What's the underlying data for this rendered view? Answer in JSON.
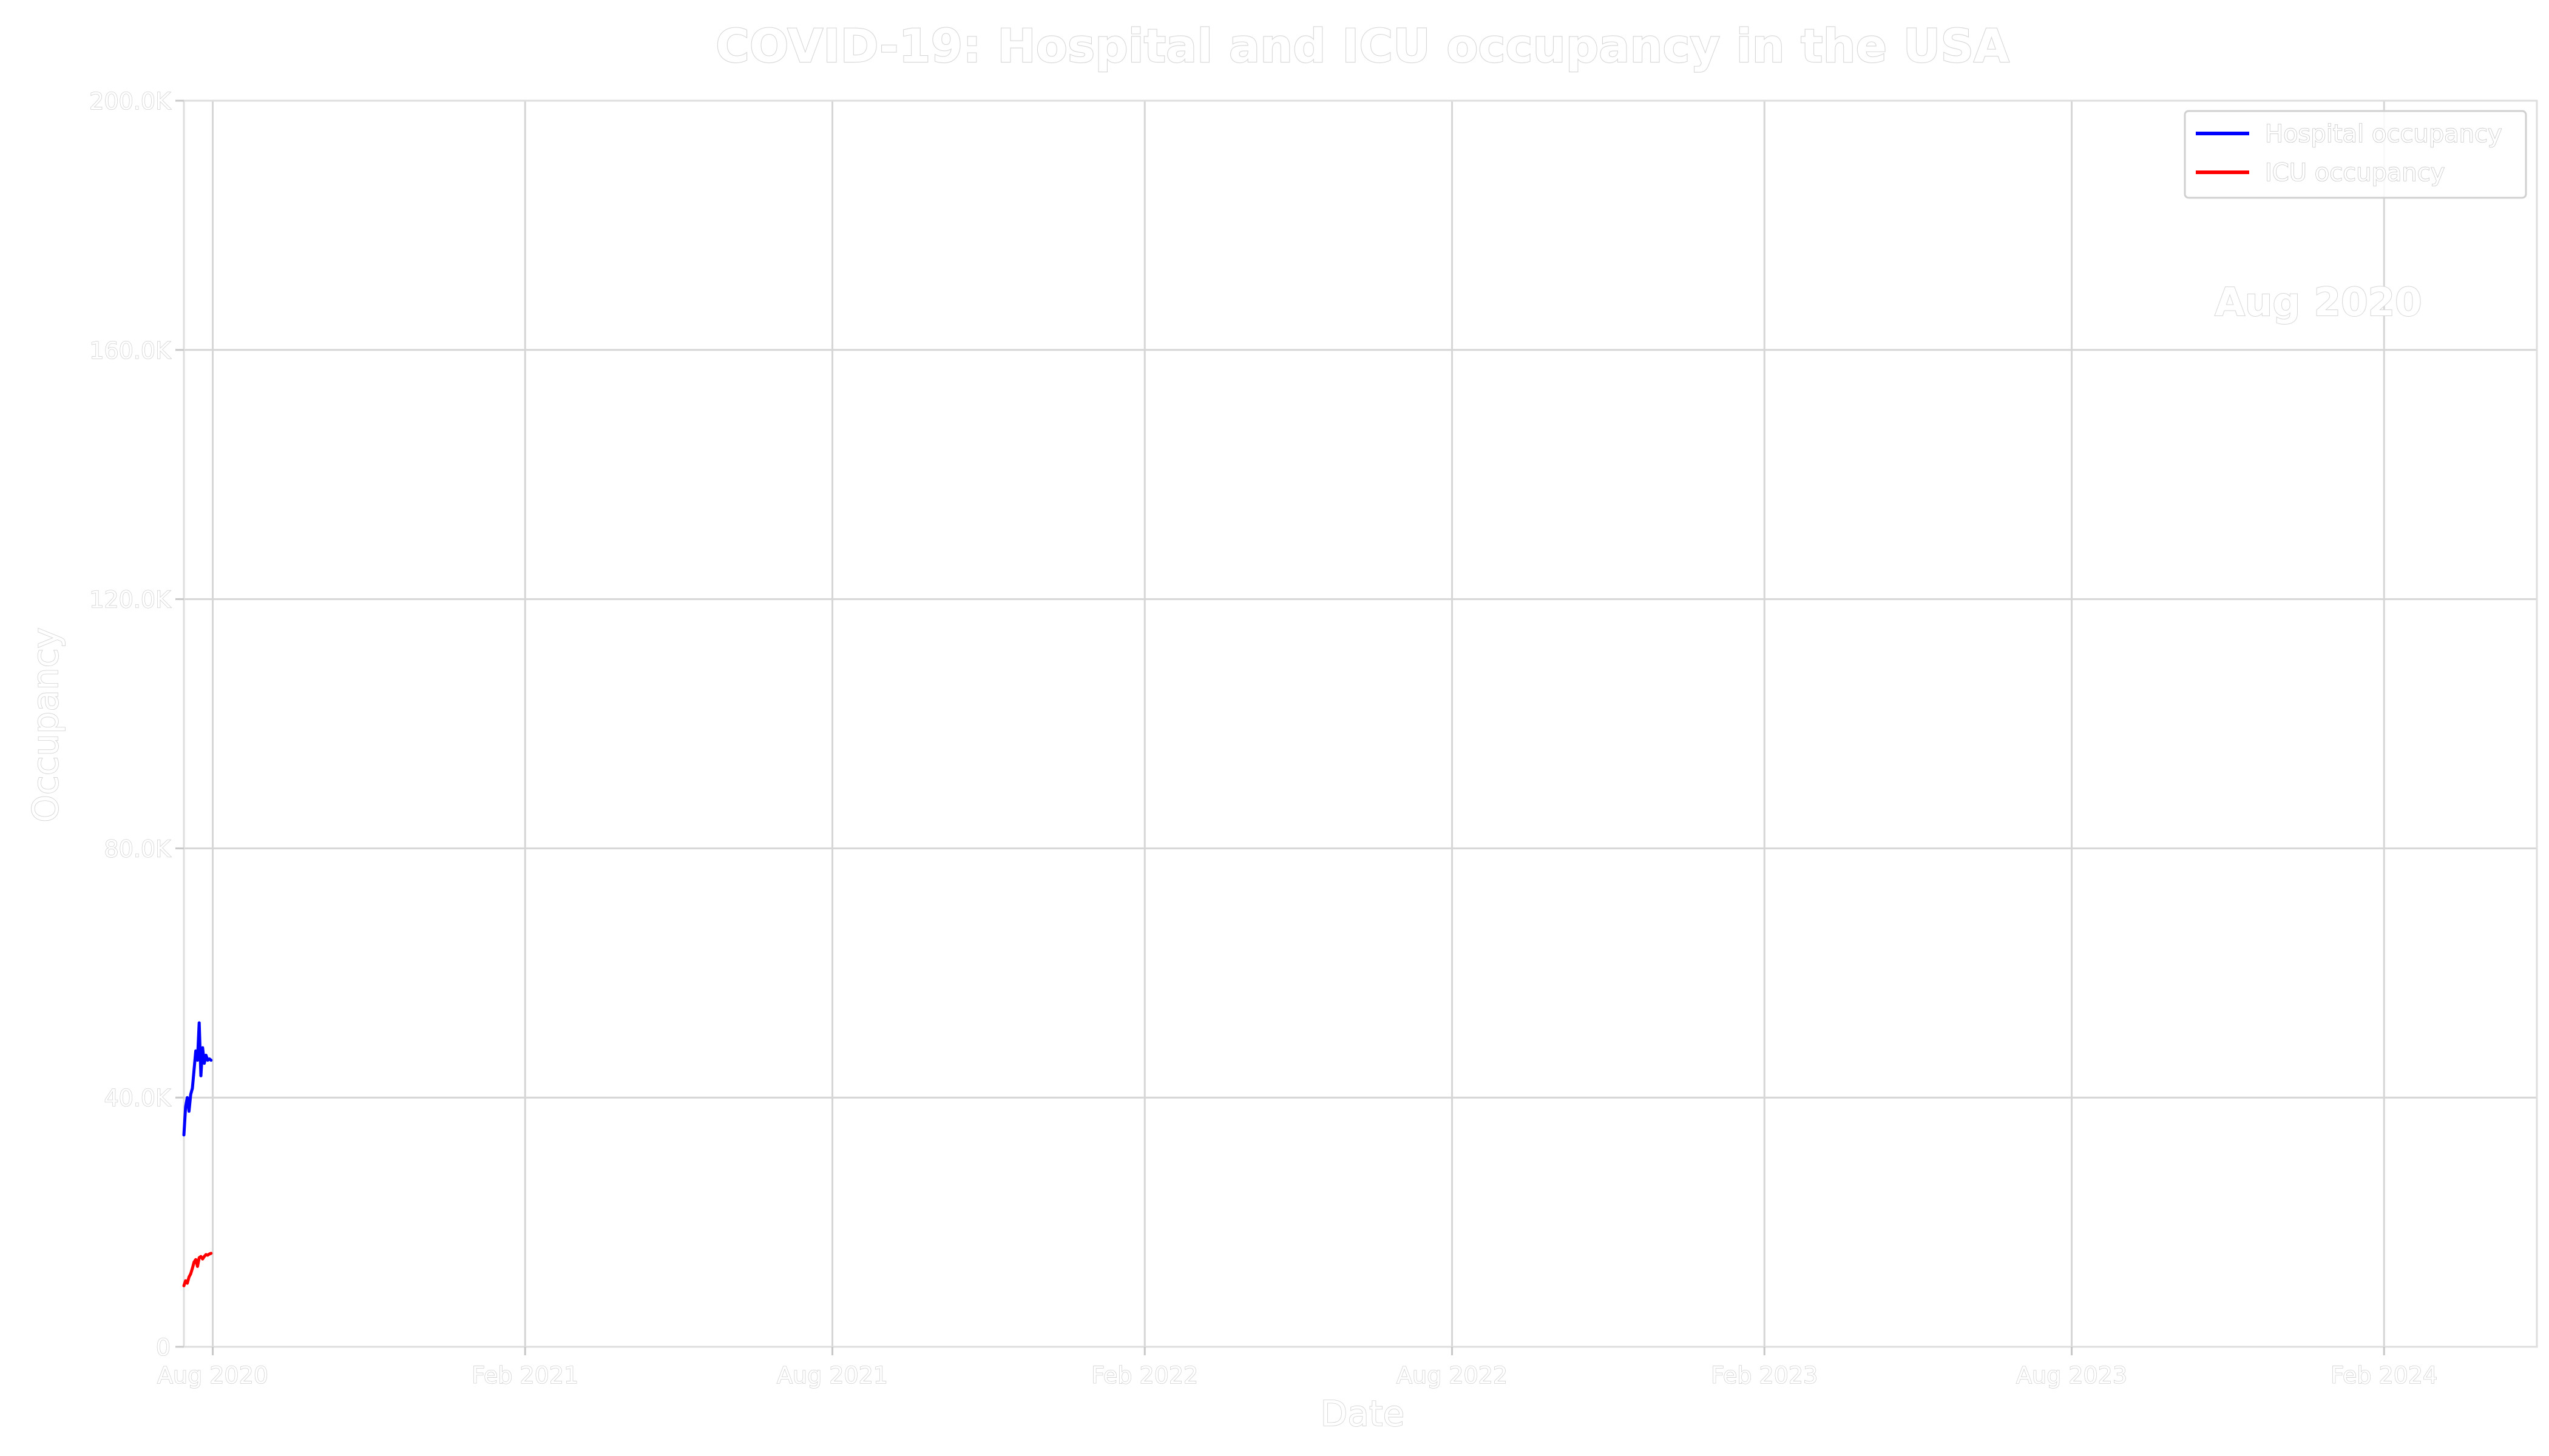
{
  "chart_data": {
    "type": "line",
    "title": "COVID-19: Hospital and ICU occupancy in the USA",
    "xlabel": "Date",
    "ylabel": "Occupancy",
    "annotation": "Aug 2020",
    "xlim": [
      "2020-07-15",
      "2024-05-01"
    ],
    "ylim": [
      0,
      200000
    ],
    "x_ticks": [
      {
        "date": "2020-08-01",
        "label": "Aug 2020"
      },
      {
        "date": "2021-02-01",
        "label": "Feb 2021"
      },
      {
        "date": "2021-08-01",
        "label": "Aug 2021"
      },
      {
        "date": "2022-02-01",
        "label": "Feb 2022"
      },
      {
        "date": "2022-08-01",
        "label": "Aug 2022"
      },
      {
        "date": "2023-02-01",
        "label": "Feb 2023"
      },
      {
        "date": "2023-08-01",
        "label": "Aug 2023"
      },
      {
        "date": "2024-02-01",
        "label": "Feb 2024"
      }
    ],
    "y_ticks": [
      {
        "value": 0,
        "label": "0"
      },
      {
        "value": 40000,
        "label": "40.0K"
      },
      {
        "value": 80000,
        "label": "80.0K"
      },
      {
        "value": 120000,
        "label": "120.0K"
      },
      {
        "value": 160000,
        "label": "160.0K"
      },
      {
        "value": 200000,
        "label": "200.0K"
      }
    ],
    "grid": true,
    "legend_position": "top-right",
    "series": [
      {
        "name": "Hospital occupancy",
        "color": "#0000ff",
        "points": [
          [
            "2020-07-15",
            34000
          ],
          [
            "2020-07-16",
            38500
          ],
          [
            "2020-07-17",
            40000
          ],
          [
            "2020-07-18",
            37800
          ],
          [
            "2020-07-19",
            40500
          ],
          [
            "2020-07-20",
            41500
          ],
          [
            "2020-07-21",
            44500
          ],
          [
            "2020-07-22",
            47500
          ],
          [
            "2020-07-23",
            46000
          ],
          [
            "2020-07-24",
            52000
          ],
          [
            "2020-07-25",
            43500
          ],
          [
            "2020-07-26",
            48000
          ],
          [
            "2020-07-27",
            45500
          ],
          [
            "2020-07-28",
            46800
          ],
          [
            "2020-07-29",
            46000
          ],
          [
            "2020-07-30",
            46200
          ],
          [
            "2020-07-31",
            46000
          ]
        ]
      },
      {
        "name": "ICU occupancy",
        "color": "#ff0000",
        "points": [
          [
            "2020-07-15",
            9800
          ],
          [
            "2020-07-16",
            10600
          ],
          [
            "2020-07-17",
            10200
          ],
          [
            "2020-07-18",
            11200
          ],
          [
            "2020-07-19",
            11700
          ],
          [
            "2020-07-20",
            12600
          ],
          [
            "2020-07-21",
            13600
          ],
          [
            "2020-07-22",
            14000
          ],
          [
            "2020-07-23",
            12900
          ],
          [
            "2020-07-24",
            14300
          ],
          [
            "2020-07-25",
            14500
          ],
          [
            "2020-07-26",
            14100
          ],
          [
            "2020-07-27",
            14500
          ],
          [
            "2020-07-28",
            14800
          ],
          [
            "2020-07-29",
            14700
          ],
          [
            "2020-07-30",
            14900
          ],
          [
            "2020-07-31",
            15000
          ]
        ]
      }
    ]
  }
}
